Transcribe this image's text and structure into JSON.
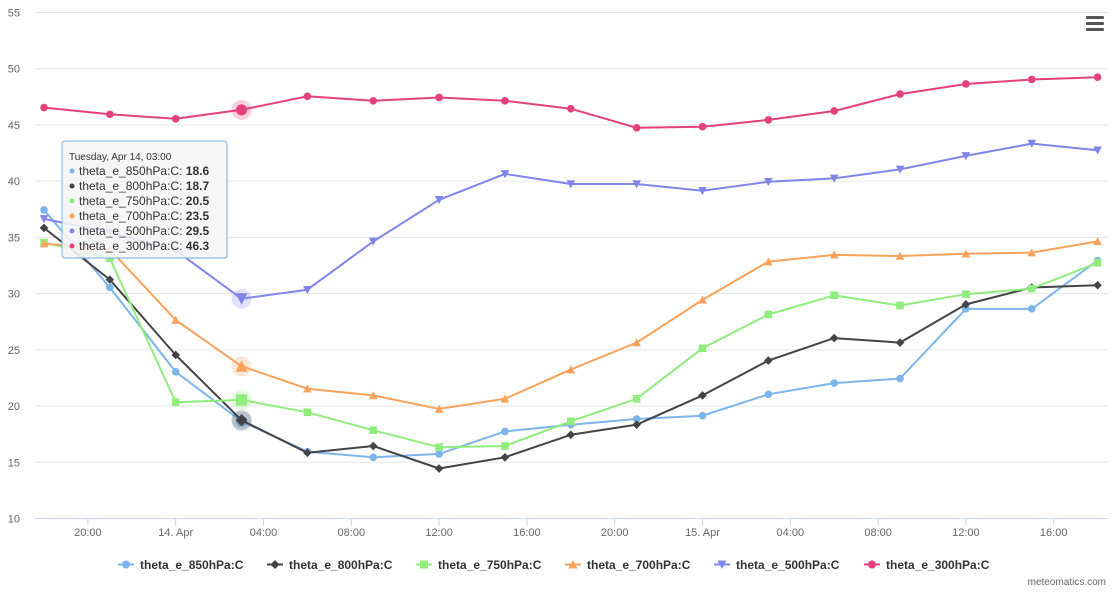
{
  "chart_data": {
    "type": "line",
    "x": [
      "Apr 13 18:00",
      "Apr 13 21:00",
      "Apr 14 00:00",
      "Apr 14 03:00",
      "Apr 14 06:00",
      "Apr 14 09:00",
      "Apr 14 12:00",
      "Apr 14 15:00",
      "Apr 14 18:00",
      "Apr 14 21:00",
      "Apr 15 00:00",
      "Apr 15 03:00",
      "Apr 15 06:00",
      "Apr 15 09:00",
      "Apr 15 12:00",
      "Apr 15 15:00",
      "Apr 15 18:00"
    ],
    "x_tick_labels": [
      "20:00",
      "14. Apr",
      "04:00",
      "08:00",
      "12:00",
      "16:00",
      "20:00",
      "15. Apr",
      "04:00",
      "08:00",
      "12:00",
      "16:00"
    ],
    "ylim": [
      10,
      55
    ],
    "y_ticks": [
      10,
      15,
      20,
      25,
      30,
      35,
      40,
      45,
      50,
      55
    ],
    "grid": true,
    "legend": "bottom",
    "series": [
      {
        "name": "theta_e_850hPa:C",
        "color": "#7cb5ec",
        "marker": "circle",
        "values": [
          37.4,
          30.5,
          23.0,
          18.6,
          15.9,
          15.4,
          15.7,
          17.7,
          18.3,
          18.8,
          19.1,
          21.0,
          22.0,
          22.4,
          28.6,
          28.6,
          32.9
        ]
      },
      {
        "name": "theta_e_800hPa:C",
        "color": "#434348",
        "marker": "diamond",
        "values": [
          35.8,
          31.2,
          24.5,
          18.7,
          15.8,
          16.4,
          14.4,
          15.4,
          17.4,
          18.3,
          20.9,
          24.0,
          26.0,
          25.6,
          29.0,
          30.5,
          30.7
        ]
      },
      {
        "name": "theta_e_750hPa:C",
        "color": "#90ed7d",
        "marker": "square",
        "values": [
          34.5,
          33.1,
          20.3,
          20.5,
          19.4,
          17.8,
          16.3,
          16.4,
          18.6,
          20.6,
          25.1,
          28.1,
          29.8,
          28.9,
          29.9,
          30.4,
          32.7
        ]
      },
      {
        "name": "theta_e_700hPa:C",
        "color": "#f7a35c",
        "marker": "triangle",
        "values": [
          34.4,
          33.9,
          27.6,
          23.5,
          21.5,
          20.9,
          19.7,
          20.6,
          23.2,
          25.6,
          29.4,
          32.8,
          33.4,
          33.3,
          33.5,
          33.6,
          34.6
        ]
      },
      {
        "name": "theta_e_500hPa:C",
        "color": "#8085e9",
        "marker": "triangle-down",
        "values": [
          36.6,
          35.4,
          33.8,
          29.5,
          30.3,
          34.6,
          38.3,
          40.6,
          39.7,
          39.7,
          39.1,
          39.9,
          40.2,
          41.0,
          42.2,
          43.3,
          42.7
        ]
      },
      {
        "name": "theta_e_300hPa:C",
        "color": "#e4407b",
        "marker": "circle",
        "values": [
          46.5,
          45.9,
          45.5,
          46.3,
          47.5,
          47.1,
          47.4,
          47.1,
          46.4,
          44.7,
          44.8,
          45.4,
          46.2,
          47.7,
          48.6,
          49.0,
          49.2
        ]
      }
    ],
    "tooltip": {
      "title": "Tuesday, Apr 14, 03:00",
      "index": 3,
      "rows": [
        {
          "label": "theta_e_850hPa:C: ",
          "value": "18.6"
        },
        {
          "label": "theta_e_800hPa:C: ",
          "value": "18.7"
        },
        {
          "label": "theta_e_750hPa:C: ",
          "value": "20.5"
        },
        {
          "label": "theta_e_700hPa:C: ",
          "value": "23.5"
        },
        {
          "label": "theta_e_500hPa:C: ",
          "value": "29.5"
        },
        {
          "label": "theta_e_300hPa:C: ",
          "value": "46.3"
        }
      ]
    }
  },
  "credit": "meteomatics.com",
  "menu_icon": "hamburger-menu-icon"
}
